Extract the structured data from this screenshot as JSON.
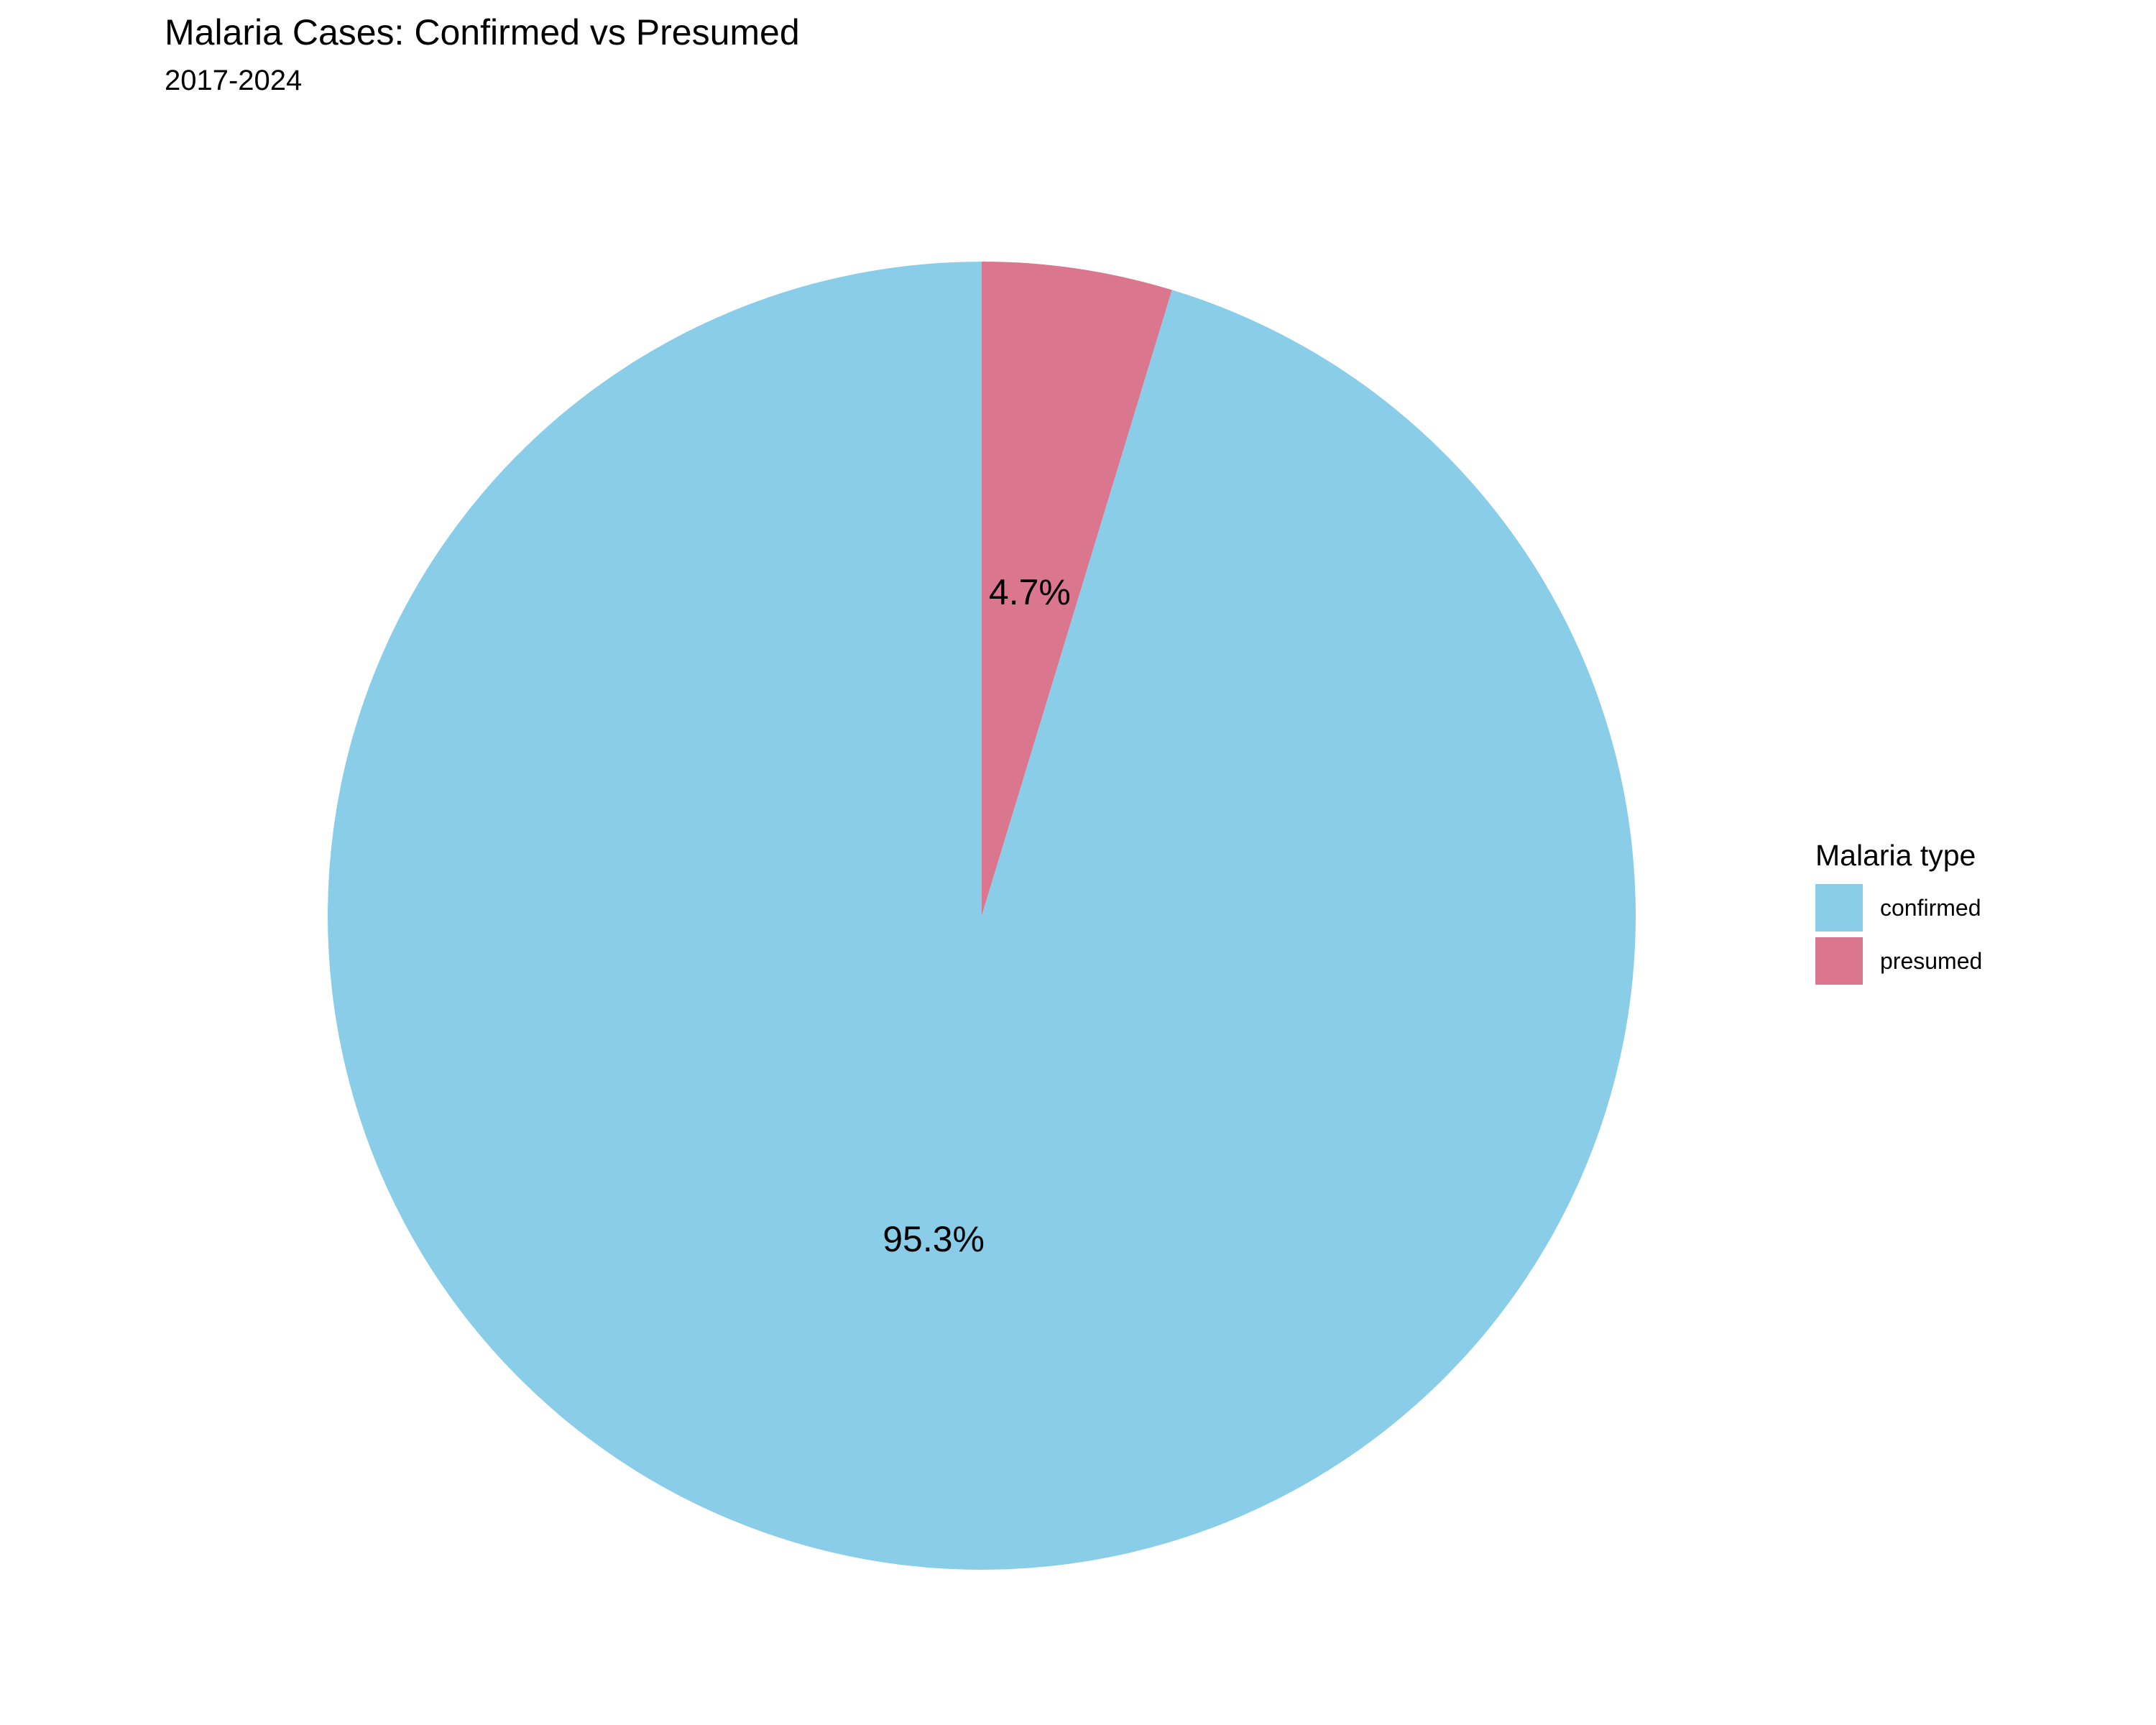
{
  "chart_data": {
    "type": "pie",
    "title": "Malaria Cases: Confirmed vs Presumed",
    "subtitle": "2017-2024",
    "legend": {
      "title": "Malaria type",
      "placement": "right"
    },
    "slices": [
      {
        "label": "confirmed",
        "value": 95.3,
        "value_label": "95.3%",
        "color": "#89CDE9"
      },
      {
        "label": "presumed",
        "value": 4.7,
        "value_label": "4.7%",
        "color": "#DB768F"
      }
    ]
  }
}
